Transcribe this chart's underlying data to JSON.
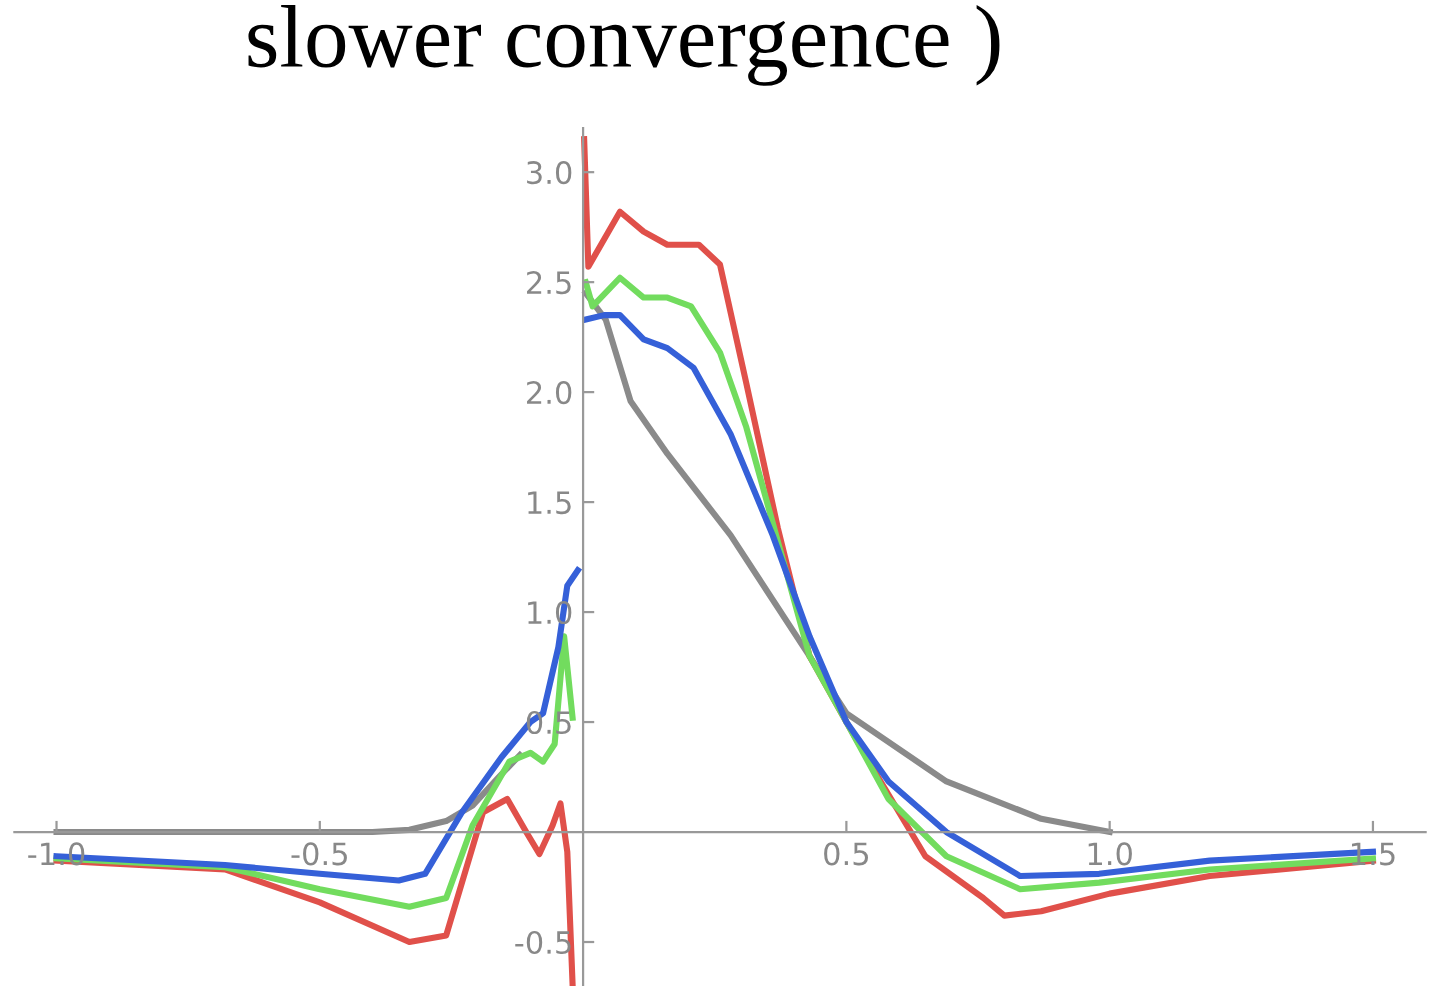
{
  "chart_data": {
    "type": "line",
    "title": "slower convergence )",
    "xlim": [
      -1.08,
      1.6
    ],
    "ylim": [
      -0.7,
      3.2
    ],
    "xticks": [
      {
        "value": -1,
        "label": "-1.0"
      },
      -0.5,
      0.5,
      {
        "value": 1,
        "label": "1.0"
      },
      1.5
    ],
    "yticks": [
      -0.5,
      0.5,
      {
        "value": 1,
        "label": "1.0"
      },
      1.5,
      {
        "value": 2,
        "label": "2.0"
      },
      2.5,
      {
        "value": 3,
        "label": "3.0"
      }
    ],
    "grid": false,
    "legend": false,
    "marker": "none",
    "line_style": "solid",
    "series": [
      {
        "color": "#8a8a8a",
        "x": [
          -1.0,
          -0.6,
          -0.4,
          -0.33,
          -0.26,
          -0.21,
          -0.16,
          -0.12,
          0,
          0.005,
          0.043,
          0.09,
          0.16,
          0.28,
          0.43,
          0.5,
          0.69,
          0.87,
          1.0
        ],
        "values": [
          0,
          0,
          0,
          0.01,
          0.05,
          0.12,
          0.25,
          0.35,
          null,
          2.45,
          2.33,
          1.96,
          1.72,
          1.35,
          0.8,
          0.54,
          0.23,
          0.06,
          0
        ]
      },
      {
        "color": "#e0504a",
        "x": [
          -1.0,
          -0.68,
          -0.5,
          -0.33,
          -0.26,
          -0.19,
          -0.144,
          -0.108,
          -0.083,
          -0.058,
          -0.043,
          -0.03,
          -0.02,
          0,
          0.002,
          0.01,
          0.07,
          0.115,
          0.16,
          0.22,
          0.26,
          0.31,
          0.37,
          0.43,
          0.5,
          0.565,
          0.65,
          0.76,
          0.8,
          0.87,
          1.0,
          1.19,
          1.5
        ],
        "values": [
          -0.13,
          -0.17,
          -0.32,
          -0.5,
          -0.47,
          0.09,
          0.15,
          0,
          -0.1,
          0.03,
          0.13,
          -0.09,
          -0.69,
          null,
          3.15,
          2.57,
          2.82,
          2.73,
          2.67,
          2.67,
          2.58,
          2.04,
          1.38,
          0.8,
          0.5,
          0.23,
          -0.11,
          -0.3,
          -0.38,
          -0.36,
          -0.28,
          -0.2,
          -0.13
        ]
      },
      {
        "color": "#72dc5e",
        "x": [
          -1.0,
          -0.68,
          -0.5,
          -0.33,
          -0.26,
          -0.21,
          -0.14,
          -0.1,
          -0.076,
          -0.054,
          -0.036,
          -0.02,
          0,
          0.005,
          0.018,
          0.07,
          0.115,
          0.16,
          0.205,
          0.26,
          0.31,
          0.37,
          0.43,
          0.5,
          0.58,
          0.69,
          0.83,
          0.98,
          1.19,
          1.5
        ],
        "values": [
          -0.12,
          -0.16,
          -0.26,
          -0.34,
          -0.3,
          0.03,
          0.32,
          0.36,
          0.32,
          0.4,
          0.89,
          0.52,
          null,
          2.5,
          2.39,
          2.52,
          2.43,
          2.43,
          2.39,
          2.18,
          1.84,
          1.32,
          0.8,
          0.5,
          0.15,
          -0.11,
          -0.26,
          -0.23,
          -0.17,
          -0.12
        ]
      },
      {
        "color": "#3560d8",
        "x": [
          -1.0,
          -0.68,
          -0.5,
          -0.35,
          -0.3,
          -0.23,
          -0.155,
          -0.1,
          -0.076,
          -0.047,
          -0.03,
          -0.01,
          0,
          0.005,
          0.04,
          0.07,
          0.115,
          0.16,
          0.21,
          0.28,
          0.36,
          0.43,
          0.5,
          0.58,
          0.69,
          0.83,
          0.98,
          1.19,
          1.5
        ],
        "values": [
          -0.11,
          -0.15,
          -0.19,
          -0.22,
          -0.19,
          0.09,
          0.34,
          0.5,
          0.54,
          0.84,
          1.12,
          1.19,
          null,
          2.33,
          2.35,
          2.35,
          2.24,
          2.2,
          2.11,
          1.81,
          1.35,
          0.89,
          0.5,
          0.23,
          0,
          -0.2,
          -0.19,
          -0.13,
          -0.09
        ]
      }
    ]
  }
}
